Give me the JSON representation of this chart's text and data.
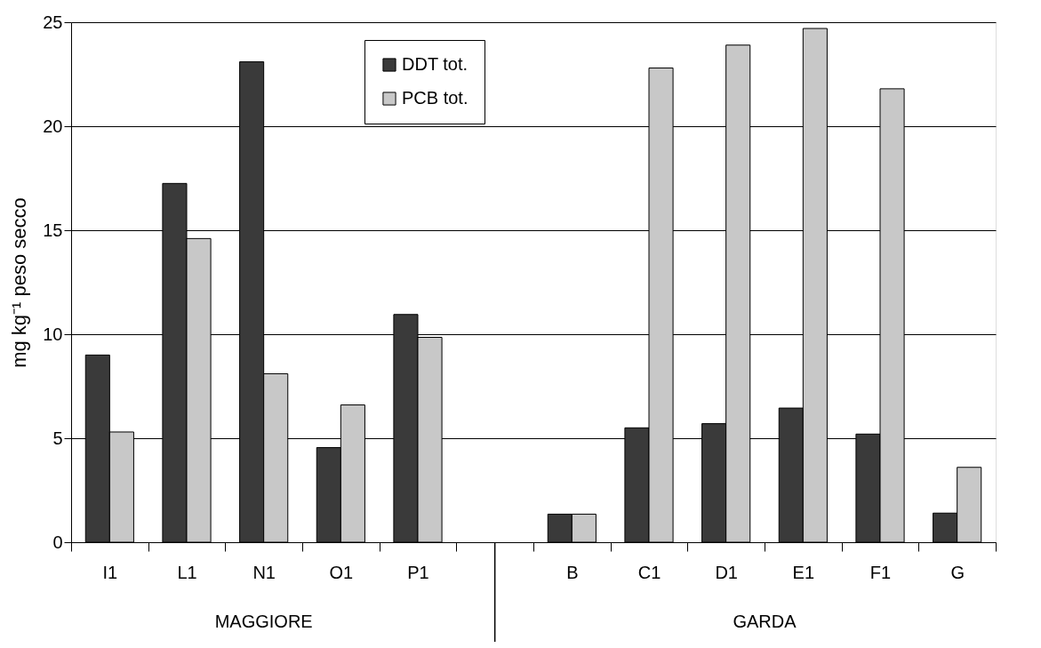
{
  "chart_data": {
    "type": "bar",
    "ylabel": "mg kg⁻¹ peso secco",
    "categories": [
      "I1",
      "L1",
      "N1",
      "O1",
      "P1",
      null,
      "B",
      "C1",
      "D1",
      "E1",
      "F1",
      "G"
    ],
    "series": [
      {
        "name": "DDT tot.",
        "color": "#3a3a3a",
        "values": [
          9.0,
          17.25,
          23.1,
          4.55,
          10.95,
          null,
          1.35,
          5.5,
          5.7,
          6.45,
          5.2,
          1.4
        ]
      },
      {
        "name": "PCB tot.",
        "color": "#c8c8c8",
        "values": [
          5.3,
          14.6,
          8.1,
          6.6,
          9.85,
          null,
          1.35,
          22.8,
          23.9,
          24.7,
          21.8,
          3.6
        ]
      }
    ],
    "ylim": [
      0,
      25
    ],
    "yticks": [
      0,
      5,
      10,
      15,
      20,
      25
    ],
    "grid": "y",
    "legend": "top",
    "annotations": [
      "MAGGIORE",
      "GARDA"
    ]
  }
}
